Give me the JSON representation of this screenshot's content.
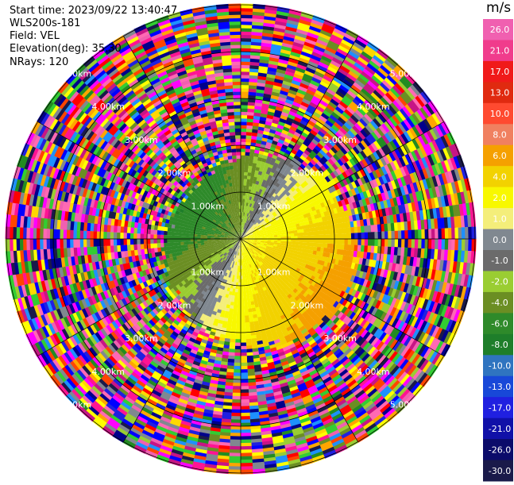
{
  "header": {
    "start_time": "Start time: 2023/09/22 13:40:47",
    "instrument": "WLS200s-181",
    "field": "Field: VEL",
    "elevation": "Elevation(deg): 35.30",
    "nrays": "NRays: 120"
  },
  "chart_data": {
    "type": "heatmap",
    "projection": "polar-ppi",
    "field": "VEL",
    "units": "m/s",
    "nrays": 120,
    "elevation_deg": 35.3,
    "range_rings_km": [
      1.0,
      2.0,
      3.0,
      4.0,
      5.0
    ],
    "range_ring_labels": [
      "1.00km",
      "2.00km",
      "3.00km",
      "4.00km",
      "5.00km"
    ],
    "max_range_km": 5.0,
    "spokes_every_deg": 30,
    "colorbar": {
      "label": "m/s",
      "ticks": [
        "26.0",
        "21.0",
        "17.0",
        "13.0",
        "10.0",
        "8.0",
        "6.0",
        "4.0",
        "2.0",
        "1.0",
        "0.0",
        "-1.0",
        "-2.0",
        "-4.0",
        "-6.0",
        "-8.0",
        "-10.0",
        "-13.0",
        "-17.0",
        "-21.0",
        "-26.0",
        "-30.0"
      ],
      "bins": [
        {
          "min": -30,
          "max": -26,
          "color": "#1a1a4a"
        },
        {
          "min": -26,
          "max": -21,
          "color": "#0b0b6a"
        },
        {
          "min": -21,
          "max": -17,
          "color": "#1010a8"
        },
        {
          "min": -17,
          "max": -13,
          "color": "#2020e0"
        },
        {
          "min": -13,
          "max": -10,
          "color": "#1848d8"
        },
        {
          "min": -10,
          "max": -8,
          "color": "#2f74c0"
        },
        {
          "min": -8,
          "max": -6,
          "color": "#1e7e2a"
        },
        {
          "min": -6,
          "max": -4,
          "color": "#2e8a2a"
        },
        {
          "min": -4,
          "max": -2,
          "color": "#6b8e23"
        },
        {
          "min": -2,
          "max": -1,
          "color": "#9acd32"
        },
        {
          "min": -1,
          "max": 0,
          "color": "#6b6b6b"
        },
        {
          "min": 0,
          "max": 1,
          "color": "#808890"
        },
        {
          "min": 1,
          "max": 2,
          "color": "#f4ee7a"
        },
        {
          "min": 2,
          "max": 4,
          "color": "#f8f800"
        },
        {
          "min": 4,
          "max": 6,
          "color": "#f2d200"
        },
        {
          "min": 6,
          "max": 8,
          "color": "#f5a000"
        },
        {
          "min": 8,
          "max": 10,
          "color": "#f08060"
        },
        {
          "min": 10,
          "max": 13,
          "color": "#ff4a30"
        },
        {
          "min": 13,
          "max": 17,
          "color": "#e02a10"
        },
        {
          "min": 17,
          "max": 21,
          "color": "#f01a1a"
        },
        {
          "min": 21,
          "max": 26,
          "color": "#f03c8c"
        },
        {
          "min": 26,
          "max": 30,
          "color": "#f060b0"
        }
      ]
    },
    "noise_palette": [
      "#ff1493",
      "#ff00ff",
      "#00008b",
      "#2020e0",
      "#ff4500",
      "#32cd32",
      "#9acd32",
      "#ffd700",
      "#ff0000",
      "#0000ff",
      "#228b22",
      "#f060b0",
      "#ffa500",
      "#ffff00",
      "#808890",
      "#6b8e23",
      "#1e90ff",
      "#c71585",
      "#ff69b4",
      "#1a1a4a"
    ],
    "signal_region": {
      "description_values_m_per_s": {
        "toward_sector": {
          "az_center_deg": 300,
          "range_km": [
            0.2,
            2.3
          ],
          "values": [
            -6.0,
            -4.0,
            -2.0
          ]
        },
        "away_sector": {
          "az_center_deg": 120,
          "range_km": [
            0.2,
            2.5
          ],
          "values": [
            2.0,
            4.0,
            6.0
          ]
        },
        "zero_line_values": [
          0.0,
          -1.0,
          1.0
        ]
      }
    }
  }
}
